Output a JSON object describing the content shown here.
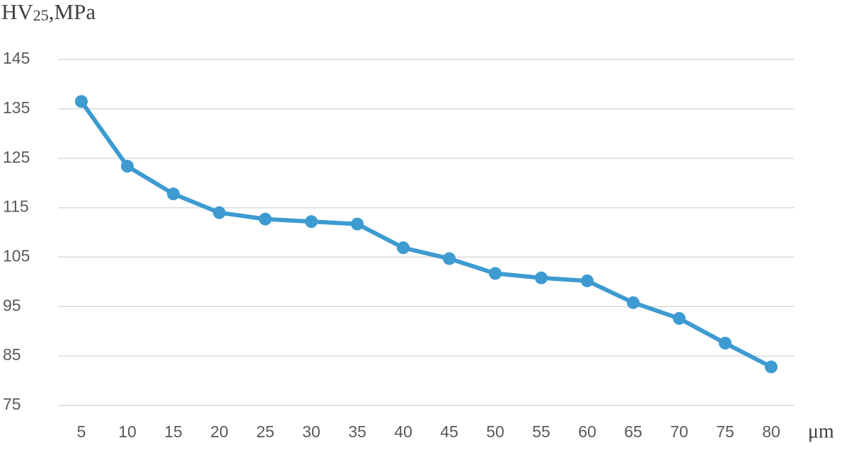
{
  "chart_data": {
    "type": "line",
    "y_label": {
      "main": "HV",
      "sub": "25",
      "rest": ",MPa"
    },
    "x_label": "μm",
    "categories": [
      "5",
      "10",
      "15",
      "20",
      "25",
      "30",
      "35",
      "40",
      "45",
      "50",
      "55",
      "60",
      "65",
      "70",
      "75",
      "80"
    ],
    "values": [
      136.5,
      123.4,
      117.8,
      114.0,
      112.7,
      112.2,
      111.7,
      106.9,
      104.7,
      101.7,
      100.8,
      100.2,
      95.8,
      92.6,
      87.6,
      82.8
    ],
    "color": "#3d9bd1",
    "ylim": [
      75,
      145
    ],
    "yticks": [
      75,
      85,
      95,
      105,
      115,
      125,
      135,
      145
    ],
    "grid": true
  }
}
